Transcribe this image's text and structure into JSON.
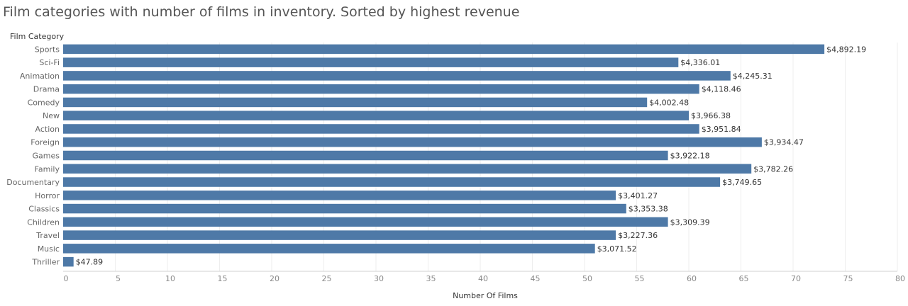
{
  "chart_data": {
    "type": "bar",
    "orientation": "horizontal",
    "title": "Film categories with number of films in inventory. Sorted by highest revenue",
    "ylabel": "Film Category",
    "xlabel": "Number Of Films",
    "xlim": [
      0,
      80
    ],
    "xticks": [
      0,
      5,
      10,
      15,
      20,
      25,
      30,
      35,
      40,
      45,
      50,
      55,
      60,
      65,
      70,
      75,
      80
    ],
    "grid": true,
    "bar_color": "#4e79a7",
    "categories": [
      "Sports",
      "Sci-Fi",
      "Animation",
      "Drama",
      "Comedy",
      "New",
      "Action",
      "Foreign",
      "Games",
      "Family",
      "Documentary",
      "Horror",
      "Classics",
      "Children",
      "Travel",
      "Music",
      "Thriller"
    ],
    "values": [
      73,
      59,
      64,
      61,
      56,
      60,
      61,
      67,
      58,
      66,
      63,
      53,
      54,
      58,
      53,
      51,
      1
    ],
    "labels": [
      "$4,892.19",
      "$4,336.01",
      "$4,245.31",
      "$4,118.46",
      "$4,002.48",
      "$3,966.38",
      "$3,951.84",
      "$3,934.47",
      "$3,922.18",
      "$3,782.26",
      "$3,749.65",
      "$3,401.27",
      "$3,353.38",
      "$3,309.39",
      "$3,227.36",
      "$3,071.52",
      "$47.89"
    ]
  }
}
